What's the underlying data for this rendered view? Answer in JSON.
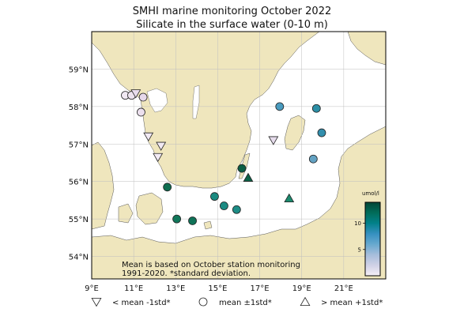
{
  "title": {
    "line1": "SMHI marine monitoring October 2022",
    "line2": "Silicate in the surface water (0-10 m)"
  },
  "map": {
    "lon_range": [
      9,
      23
    ],
    "lat_range": [
      53.4,
      60
    ],
    "lon_ticks": [
      {
        "v": 9,
        "label": "9°E"
      },
      {
        "v": 11,
        "label": "11°E"
      },
      {
        "v": 13,
        "label": "13°E"
      },
      {
        "v": 15,
        "label": "15°E"
      },
      {
        "v": 17,
        "label": "17°E"
      },
      {
        "v": 19,
        "label": "19°E"
      },
      {
        "v": 21,
        "label": "21°E"
      }
    ],
    "lat_ticks": [
      {
        "v": 54,
        "label": "54°N"
      },
      {
        "v": 55,
        "label": "55°N"
      },
      {
        "v": 56,
        "label": "56°N"
      },
      {
        "v": 57,
        "label": "57°N"
      },
      {
        "v": 58,
        "label": "58°N"
      },
      {
        "v": 59,
        "label": "59°N"
      }
    ],
    "colors": {
      "land": "#efe6bd",
      "sea": "#ffffff",
      "grid": "#bfbfbf",
      "coast": "#555555"
    },
    "note_lines": [
      "Mean is based on October station monitoring",
      "1991-2020. *standard deviation."
    ]
  },
  "stations": [
    {
      "lon": 10.6,
      "lat": 58.3,
      "symbol": "circle",
      "color": "#f0e8f2"
    },
    {
      "lon": 10.9,
      "lat": 58.3,
      "symbol": "circle",
      "color": "#ede3ef"
    },
    {
      "lon": 11.1,
      "lat": 58.35,
      "symbol": "down",
      "color": "#e8dcec"
    },
    {
      "lon": 11.45,
      "lat": 58.25,
      "symbol": "circle",
      "color": "#e6d8ea"
    },
    {
      "lon": 11.35,
      "lat": 57.85,
      "symbol": "circle",
      "color": "#ece0ee"
    },
    {
      "lon": 11.7,
      "lat": 57.2,
      "symbol": "down",
      "color": "#f2eaf4"
    },
    {
      "lon": 12.3,
      "lat": 56.95,
      "symbol": "down",
      "color": "#f1e9f3"
    },
    {
      "lon": 12.15,
      "lat": 56.65,
      "symbol": "down",
      "color": "#f2eaf4"
    },
    {
      "lon": 12.6,
      "lat": 55.85,
      "symbol": "circle",
      "color": "#0e6e50"
    },
    {
      "lon": 13.05,
      "lat": 55.0,
      "symbol": "circle",
      "color": "#10775a"
    },
    {
      "lon": 13.8,
      "lat": 54.95,
      "symbol": "circle",
      "color": "#0f7257"
    },
    {
      "lon": 14.85,
      "lat": 55.6,
      "symbol": "circle",
      "color": "#1a8a80"
    },
    {
      "lon": 15.3,
      "lat": 55.35,
      "symbol": "circle",
      "color": "#1b8a82"
    },
    {
      "lon": 15.9,
      "lat": 55.25,
      "symbol": "circle",
      "color": "#1d8d86"
    },
    {
      "lon": 16.15,
      "lat": 56.35,
      "symbol": "circle",
      "color": "#0b5e44"
    },
    {
      "lon": 16.45,
      "lat": 56.1,
      "symbol": "up",
      "color": "#0c6147"
    },
    {
      "lon": 17.65,
      "lat": 57.1,
      "symbol": "down",
      "color": "#e6dcec"
    },
    {
      "lon": 17.95,
      "lat": 58.0,
      "symbol": "circle",
      "color": "#4a9bbf"
    },
    {
      "lon": 18.4,
      "lat": 55.55,
      "symbol": "up",
      "color": "#1b8a6e"
    },
    {
      "lon": 19.55,
      "lat": 56.6,
      "symbol": "circle",
      "color": "#63a2c3"
    },
    {
      "lon": 19.7,
      "lat": 57.95,
      "symbol": "circle",
      "color": "#2c8fa6"
    },
    {
      "lon": 19.95,
      "lat": 57.3,
      "symbol": "circle",
      "color": "#338fad"
    }
  ],
  "colorbar": {
    "unit": "umol/l",
    "min": 0,
    "max": 14,
    "ticks": [
      5,
      10
    ],
    "stops": [
      "#f6eff7",
      "#d0d1e6",
      "#a6bddb",
      "#67a9cf",
      "#3690c0",
      "#02818a",
      "#016c59",
      "#014636"
    ]
  },
  "legend": [
    {
      "symbol": "down",
      "label": "< mean -1std*"
    },
    {
      "symbol": "circle",
      "label": "mean ±1std*"
    },
    {
      "symbol": "up",
      "label": "> mean +1std*"
    }
  ]
}
